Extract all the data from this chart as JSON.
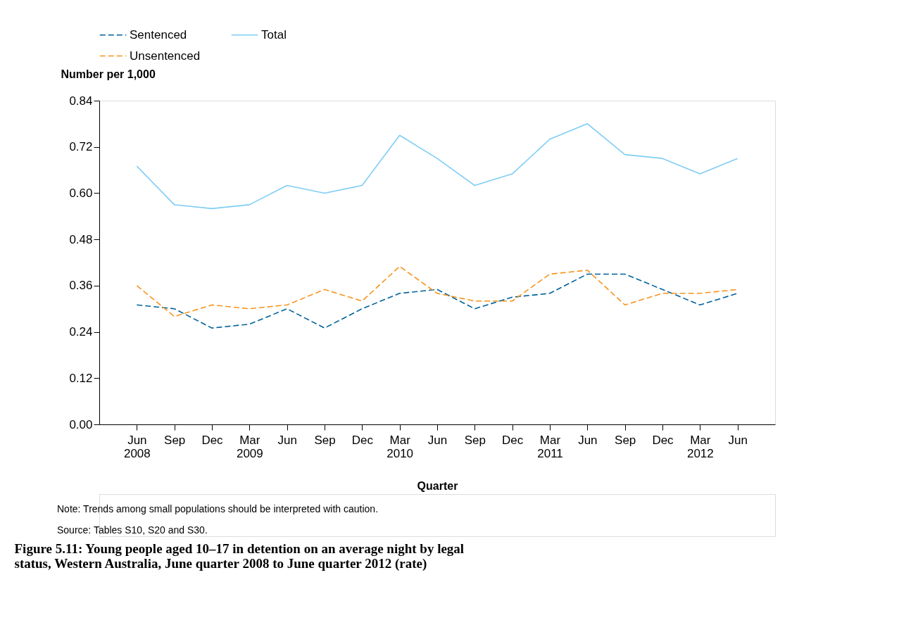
{
  "chart_data": {
    "type": "line",
    "title": "Figure 5.11: Young people aged 10–17 in detention on an average night by legal status, Western Australia, June quarter 2008 to June quarter 2012 (rate)",
    "xlabel": "Quarter",
    "ylabel": "Number per 1,000",
    "categories": [
      "Jun 2008",
      "Sep",
      "Dec",
      "Mar 2009",
      "Jun",
      "Sep",
      "Dec",
      "Mar 2010",
      "Jun",
      "Sep",
      "Dec",
      "Mar 2011",
      "Jun",
      "Sep",
      "Dec",
      "Mar 2012",
      "Jun"
    ],
    "series": [
      {
        "name": "Sentenced",
        "color": "#00629b",
        "line_style": "dashed",
        "values": [
          0.31,
          0.3,
          0.25,
          0.26,
          0.3,
          0.25,
          0.3,
          0.34,
          0.35,
          0.3,
          0.33,
          0.34,
          0.39,
          0.39,
          0.35,
          0.31,
          0.34
        ]
      },
      {
        "name": "Total",
        "color": "#7fcdf5",
        "line_style": "solid",
        "values": [
          0.67,
          0.57,
          0.56,
          0.57,
          0.62,
          0.6,
          0.62,
          0.75,
          0.69,
          0.62,
          0.65,
          0.74,
          0.78,
          0.7,
          0.69,
          0.65,
          0.69
        ]
      },
      {
        "name": "Unsentenced",
        "color": "#f7941d",
        "line_style": "dashed",
        "values": [
          0.36,
          0.28,
          0.31,
          0.3,
          0.31,
          0.35,
          0.32,
          0.41,
          0.34,
          0.32,
          0.32,
          0.39,
          0.4,
          0.31,
          0.34,
          0.34,
          0.35
        ]
      }
    ],
    "ylim": [
      0,
      0.84
    ],
    "yticks": [
      {
        "value": 0,
        "label": "0.00"
      },
      {
        "value": 0.12,
        "label": "0.12"
      },
      {
        "value": 0.24,
        "label": "0.24"
      },
      {
        "value": 0.36,
        "label": "0.36"
      },
      {
        "value": 0.48,
        "label": "0.48"
      },
      {
        "value": 0.6,
        "label": "0.60"
      },
      {
        "value": 0.72,
        "label": "0.72"
      },
      {
        "value": 0.84,
        "label": "0.84"
      }
    ],
    "grid": false,
    "legend": "top",
    "marker": "none",
    "annotations": [
      "Note: Trends among small populations should be interpreted with caution.",
      "Source: Tables S10, S20 and S30."
    ]
  }
}
